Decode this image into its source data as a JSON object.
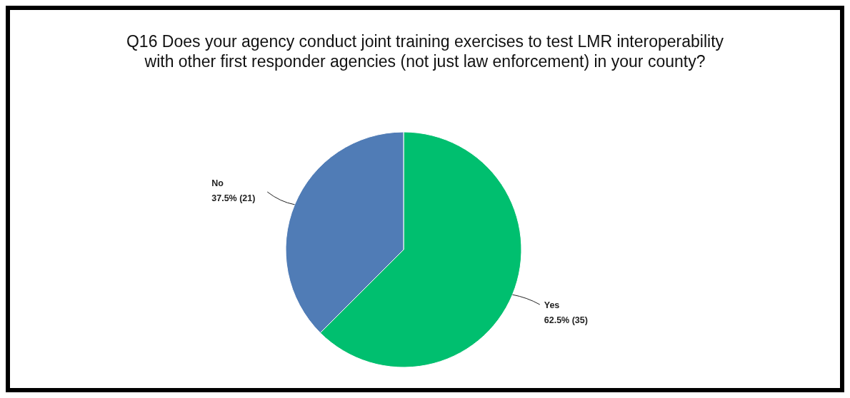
{
  "chart_data": {
    "type": "pie",
    "title": "Q16 Does your agency conduct joint training exercises to test LMR interoperability with other first responder agencies (not just law enforcement) in your county?",
    "categories": [
      "Yes",
      "No"
    ],
    "values": [
      35,
      21
    ],
    "value_labels": [
      "62.5% (35)",
      "37.5% (21)"
    ],
    "colors": [
      "#00bf6f",
      "#507cb6"
    ]
  }
}
